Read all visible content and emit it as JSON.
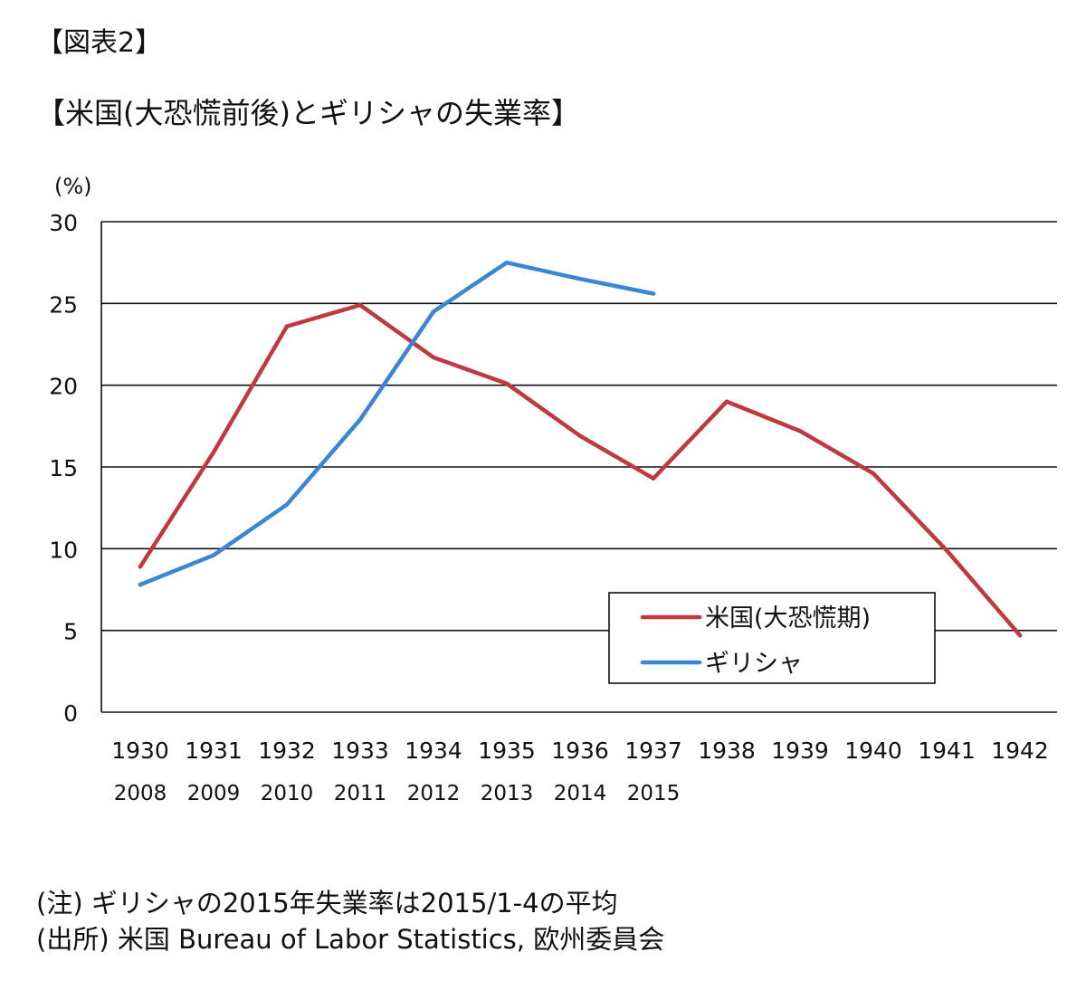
{
  "figure_label": "【図表2】",
  "chart_data": {
    "type": "line",
    "title": "【米国(大恐慌前後)とギリシャの失業率】",
    "ylabel": "(%)",
    "xlabel": "",
    "ylim": [
      0,
      30
    ],
    "yticks": [
      "0",
      "5",
      "10",
      "15",
      "20",
      "25",
      "30"
    ],
    "grid": "horizontal",
    "legend": "inside-bottom-right",
    "categories_us": [
      "1930",
      "1931",
      "1932",
      "1933",
      "1934",
      "1935",
      "1936",
      "1937",
      "1938",
      "1939",
      "1940",
      "1941",
      "1942"
    ],
    "categories_greece": [
      "2008",
      "2009",
      "2010",
      "2011",
      "2012",
      "2013",
      "2014",
      "2015"
    ],
    "series": [
      {
        "name": "米国(大恐慌期)",
        "color": "#c0393f",
        "values": [
          8.9,
          15.9,
          23.6,
          24.9,
          21.7,
          20.1,
          16.9,
          14.3,
          19.0,
          17.2,
          14.6,
          9.9,
          4.7
        ]
      },
      {
        "name": "ギリシャ",
        "color": "#3a86d4",
        "values": [
          7.8,
          9.6,
          12.7,
          17.9,
          24.5,
          27.5,
          26.5,
          25.6
        ]
      }
    ]
  },
  "notes": {
    "note": "(注) ギリシャの2015年失業率は2015/1-4の平均",
    "source": "(出所) 米国 Bureau of Labor Statistics, 欧州委員会"
  }
}
